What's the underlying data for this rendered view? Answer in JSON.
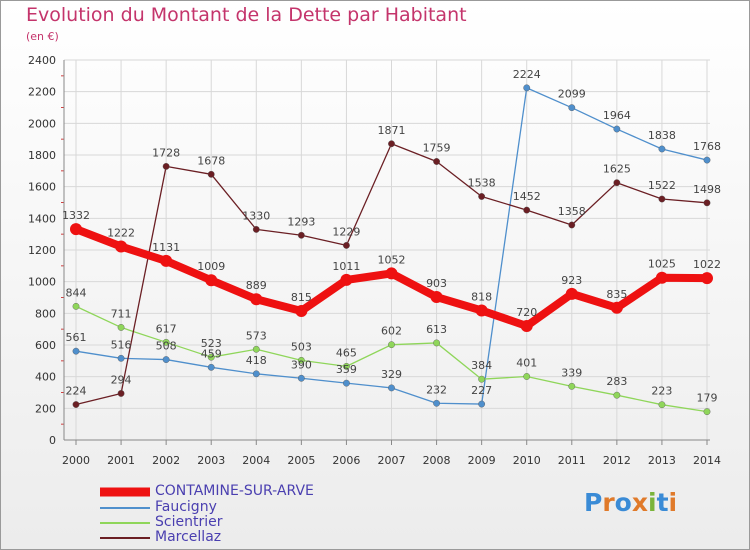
{
  "title": "Evolution du Montant de la Dette par Habitant",
  "unit": "(en €)",
  "logo": {
    "text": "Proxiti",
    "letters": [
      "P",
      "r",
      "o",
      "x",
      "i",
      "t",
      "i"
    ],
    "colors": [
      "#3a8bd6",
      "#e07a2a",
      "#3a8bd6",
      "#e07a2a",
      "#7ab43a",
      "#3a8bd6",
      "#e07a2a"
    ]
  },
  "chart_data": {
    "type": "line",
    "x": [
      "2000",
      "2001",
      "2002",
      "2003",
      "2004",
      "2005",
      "2006",
      "2007",
      "2008",
      "2009",
      "2010",
      "2011",
      "2012",
      "2013",
      "2014"
    ],
    "ylim": [
      0,
      2400
    ],
    "yticks": [
      "0",
      "200",
      "400",
      "600",
      "800",
      "1000",
      "1200",
      "1400",
      "1600",
      "1800",
      "2000",
      "2200",
      "2400"
    ],
    "grid": true,
    "legend_position": "bottom-left",
    "series": [
      {
        "name": "CONTAMINE-SUR-ARVE",
        "color": "#ee1111",
        "values": [
          1332,
          1222,
          1131,
          1009,
          889,
          815,
          1011,
          1052,
          903,
          818,
          720,
          923,
          835,
          1025,
          1022
        ]
      },
      {
        "name": "Faucigny",
        "color": "#4f8fcc",
        "values": [
          561,
          516,
          508,
          459,
          418,
          390,
          359,
          329,
          232,
          227,
          2224,
          2099,
          1964,
          1838,
          1768
        ]
      },
      {
        "name": "Scientrier",
        "color": "#8fd65a",
        "values": [
          844,
          711,
          617,
          523,
          573,
          503,
          465,
          602,
          613,
          384,
          401,
          339,
          283,
          223,
          179
        ]
      },
      {
        "name": "Marcellaz",
        "color": "#6b1f24",
        "values": [
          224,
          294,
          1728,
          1678,
          1330,
          1293,
          1229,
          1871,
          1759,
          1538,
          1452,
          1358,
          1625,
          1522,
          1498
        ]
      }
    ]
  }
}
